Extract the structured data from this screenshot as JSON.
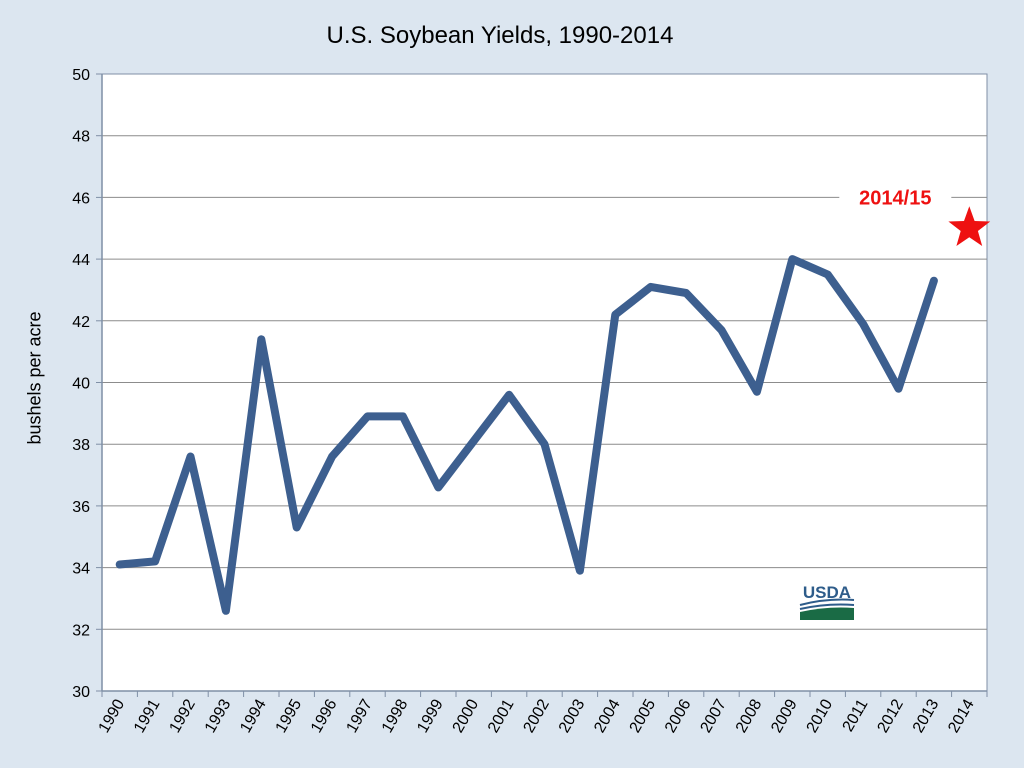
{
  "chart_data": {
    "type": "line",
    "title": "U.S. Soybean Yields, 1990-2014",
    "xlabel": "",
    "ylabel": "bushels per acre",
    "ylim": [
      30,
      50
    ],
    "yticks": [
      30,
      32,
      34,
      36,
      38,
      40,
      42,
      44,
      46,
      48,
      50
    ],
    "categories": [
      "1990",
      "1991",
      "1992",
      "1993",
      "1994",
      "1995",
      "1996",
      "1997",
      "1998",
      "1999",
      "2000",
      "2001",
      "2002",
      "2003",
      "2004",
      "2005",
      "2006",
      "2007",
      "2008",
      "2009",
      "2010",
      "2011",
      "2012",
      "2013",
      "2014"
    ],
    "series": [
      {
        "values": [
          34.1,
          34.2,
          37.6,
          32.6,
          41.4,
          35.3,
          37.6,
          38.9,
          38.9,
          36.6,
          38.1,
          39.6,
          38.0,
          33.9,
          42.2,
          43.1,
          42.9,
          41.7,
          39.7,
          44.0,
          43.5,
          41.9,
          39.8,
          43.3,
          null
        ],
        "color": "#3d5f8f"
      }
    ],
    "annotation": {
      "label": "2014/15",
      "category": "2014",
      "value": 45.0,
      "color": "#ee1111",
      "marker": "star"
    },
    "grid": true,
    "legend": "none"
  },
  "logo": {
    "text": "USDA",
    "icon": "usda-logo"
  }
}
